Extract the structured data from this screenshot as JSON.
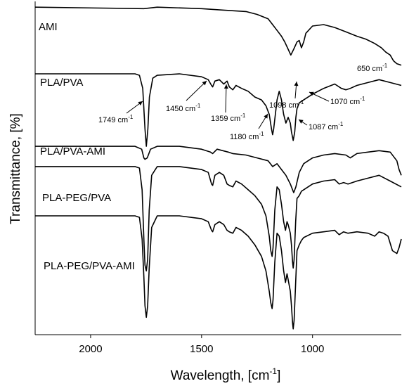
{
  "chart_data": {
    "type": "line",
    "title": "",
    "xlabel": "Wavelength, [cm",
    "xlabel_sup": "-1",
    "xlabel_end": "]",
    "ylabel": "Transmittance, [%]",
    "xlim": [
      2250,
      600
    ],
    "x_reversed": true,
    "x_ticks": [
      2000,
      1500,
      1000
    ],
    "x_tick_labels": [
      "2000",
      "1500",
      "1000"
    ],
    "grid": false,
    "legend": "none",
    "y_units": "offset transmittance (arbitrary)",
    "series": [
      {
        "name": "AMI",
        "x": [
          2250,
          1760,
          1700,
          1500,
          1400,
          1300,
          1250,
          1200,
          1180,
          1160,
          1140,
          1125,
          1110,
          1098,
          1085,
          1070,
          1060,
          1050,
          1040,
          1030,
          1000,
          950,
          900,
          850,
          800,
          760,
          720,
          690,
          670,
          650,
          635,
          620,
          600
        ],
        "y": [
          98,
          97.5,
          98,
          97.5,
          97,
          96.5,
          95.5,
          94,
          92,
          90,
          88,
          86,
          83.5,
          81.5,
          83.5,
          86,
          86.5,
          84,
          86,
          89,
          91.5,
          92,
          91,
          89.5,
          88,
          87,
          85.5,
          84,
          82.5,
          81.5,
          79.5,
          78.5,
          78
        ]
      },
      {
        "name": "PLA/PVA",
        "x": [
          2250,
          1800,
          1780,
          1765,
          1755,
          1749,
          1742,
          1735,
          1720,
          1700,
          1600,
          1500,
          1470,
          1455,
          1450,
          1440,
          1420,
          1400,
          1385,
          1375,
          1359,
          1345,
          1320,
          1290,
          1260,
          1230,
          1210,
          1195,
          1185,
          1180,
          1175,
          1160,
          1150,
          1140,
          1130,
          1120,
          1110,
          1100,
          1095,
          1087,
          1080,
          1075,
          1070,
          1060,
          1040,
          1000,
          950,
          900,
          870,
          850,
          830,
          800,
          750,
          700,
          650,
          600
        ],
        "y": [
          75,
          75,
          74.5,
          70,
          56,
          50,
          56,
          67,
          73.5,
          74.5,
          75,
          74,
          73,
          71,
          70.5,
          72.5,
          73,
          71.5,
          72.5,
          70.5,
          69.5,
          71,
          70,
          69,
          67,
          66,
          64,
          61,
          56,
          54,
          56,
          66,
          69,
          66,
          61,
          58,
          60,
          58,
          55,
          52,
          55,
          60,
          63,
          65,
          66,
          68,
          70,
          71.5,
          70,
          69.5,
          70,
          71,
          72,
          73,
          72,
          71
        ]
      },
      {
        "name": "PLA/PVA-AMI",
        "x": [
          2250,
          1800,
          1770,
          1760,
          1755,
          1745,
          1730,
          1700,
          1600,
          1500,
          1460,
          1450,
          1430,
          1380,
          1360,
          1300,
          1250,
          1200,
          1180,
          1160,
          1140,
          1120,
          1100,
          1090,
          1085,
          1075,
          1060,
          1040,
          1000,
          950,
          900,
          850,
          830,
          800,
          750,
          700,
          650,
          620,
          610,
          600
        ],
        "y": [
          50,
          50,
          49,
          46,
          45.5,
          46,
          49,
          50,
          50,
          49,
          48,
          47.5,
          49,
          48,
          47.5,
          47,
          46,
          45,
          43,
          44,
          42,
          40,
          37,
          35,
          34,
          36,
          41,
          44,
          46,
          47,
          47.5,
          47,
          46,
          47.5,
          48,
          48.5,
          48,
          45,
          42,
          40
        ]
      },
      {
        "name": "PLA-PEG/PVA",
        "x": [
          2250,
          1800,
          1780,
          1768,
          1760,
          1755,
          1749,
          1743,
          1736,
          1725,
          1700,
          1600,
          1500,
          1470,
          1455,
          1450,
          1440,
          1420,
          1400,
          1385,
          1375,
          1359,
          1345,
          1320,
          1290,
          1260,
          1230,
          1210,
          1195,
          1188,
          1182,
          1178,
          1170,
          1160,
          1150,
          1140,
          1130,
          1122,
          1115,
          1110,
          1100,
          1095,
          1090,
          1087,
          1083,
          1076,
          1070,
          1060,
          1050,
          1040,
          1000,
          950,
          900,
          880,
          860,
          840,
          800,
          750,
          700,
          650,
          600
        ],
        "y": [
          43,
          43,
          42.5,
          35,
          18,
          9,
          7,
          11,
          28,
          40,
          43,
          43,
          42,
          41,
          37,
          36.5,
          40,
          41,
          40,
          37,
          36.5,
          36,
          38,
          37,
          35,
          33,
          30,
          26,
          19,
          14,
          12,
          15,
          28,
          36,
          35,
          30,
          24,
          21,
          24,
          23,
          20,
          16,
          10,
          8,
          11,
          24,
          32,
          33,
          34.5,
          35,
          37,
          38,
          38.5,
          37,
          37.5,
          37,
          38,
          39,
          40,
          38,
          36
        ]
      },
      {
        "name": "PLA-PEG/PVA-AMI",
        "x": [
          2250,
          1800,
          1780,
          1768,
          1760,
          1755,
          1749,
          1743,
          1736,
          1725,
          1700,
          1600,
          1500,
          1470,
          1455,
          1450,
          1440,
          1420,
          1400,
          1385,
          1375,
          1359,
          1345,
          1320,
          1290,
          1260,
          1230,
          1210,
          1195,
          1188,
          1182,
          1178,
          1170,
          1160,
          1150,
          1140,
          1130,
          1122,
          1115,
          1110,
          1100,
          1095,
          1090,
          1087,
          1083,
          1076,
          1070,
          1060,
          1050,
          1040,
          1000,
          950,
          900,
          880,
          860,
          840,
          800,
          750,
          720,
          700,
          680,
          660,
          640,
          620,
          610,
          600
        ],
        "y": [
          26,
          26,
          25.5,
          18,
          5,
          -5,
          -9,
          -5,
          8,
          22,
          26,
          26,
          25,
          24,
          21,
          20.5,
          23,
          24,
          23,
          21,
          20.5,
          20,
          22,
          21,
          19,
          16,
          12,
          7,
          0,
          -4,
          -6,
          -3,
          10,
          20,
          19,
          14,
          7,
          3,
          6,
          4,
          0,
          -5,
          -11,
          -13,
          -10,
          3,
          14,
          16,
          17.5,
          18.5,
          20,
          20.5,
          21,
          19.5,
          20.5,
          20,
          20.5,
          20,
          19,
          20.5,
          20,
          19,
          14,
          13,
          15,
          18
        ]
      }
    ],
    "annotations": [
      {
        "text": "1098 cm",
        "sup": "-1"
      },
      {
        "text": "650 cm",
        "sup": "-1"
      },
      {
        "text": "1749 cm",
        "sup": "-1"
      },
      {
        "text": "1450 cm",
        "sup": "-1"
      },
      {
        "text": "1359 cm",
        "sup": "-1"
      },
      {
        "text": "1180 cm",
        "sup": "-1"
      },
      {
        "text": "1087 cm",
        "sup": "-1"
      },
      {
        "text": "1070 cm",
        "sup": "-1"
      }
    ],
    "colors": {
      "line": "#000000",
      "axis": "#000000"
    }
  }
}
